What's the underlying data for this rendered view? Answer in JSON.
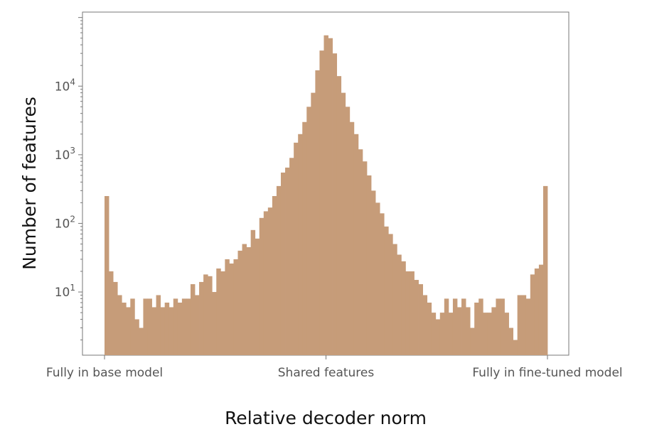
{
  "chart_data": {
    "type": "bar",
    "title": "",
    "xlabel": "Relative decoder norm",
    "ylabel": "Number of features",
    "xlim": [
      0,
      1
    ],
    "x_tick_values": [
      0,
      0.5,
      1
    ],
    "x_tick_labels": [
      "Fully in base model",
      "Shared features",
      "Fully in fine-tuned model"
    ],
    "y_scale": "log",
    "ylim": [
      1.2,
      120000
    ],
    "y_tick_values": [
      10,
      100,
      1000,
      10000
    ],
    "y_tick_labels": [
      {
        "base": "10",
        "exp": "1"
      },
      {
        "base": "10",
        "exp": "2"
      },
      {
        "base": "10",
        "exp": "3"
      },
      {
        "base": "10",
        "exp": "4"
      }
    ],
    "grid": false,
    "bar_color": "#c69c79",
    "bin_width": 0.01,
    "series": [
      {
        "values": [
          250,
          20,
          14,
          9,
          7,
          6,
          8,
          4,
          3,
          8,
          8,
          6,
          9,
          6,
          7,
          6,
          8,
          7,
          8,
          8,
          13,
          9,
          14,
          18,
          17,
          10,
          22,
          20,
          30,
          26,
          30,
          40,
          50,
          45,
          80,
          60,
          120,
          150,
          170,
          250,
          350,
          550,
          650,
          900,
          1500,
          2000,
          3000,
          5000,
          8000,
          17000,
          33000,
          55000,
          50000,
          30000,
          14000,
          8000,
          5000,
          3000,
          2000,
          1200,
          800,
          500,
          300,
          200,
          140,
          90,
          70,
          50,
          35,
          28,
          20,
          20,
          15,
          13,
          9,
          7,
          5,
          4,
          5,
          8,
          5,
          8,
          6,
          8,
          6,
          3,
          7,
          8,
          5,
          5,
          6,
          8,
          8,
          5,
          3,
          2,
          9,
          9,
          8,
          18,
          22,
          25,
          350
        ]
      }
    ]
  }
}
